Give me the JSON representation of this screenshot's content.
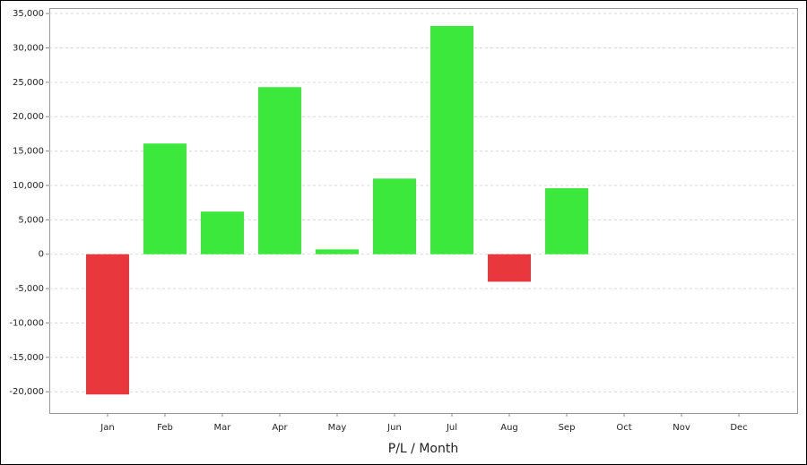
{
  "chart_data": {
    "type": "bar",
    "x_label": "P/L / Month",
    "categories": [
      "Jan",
      "Feb",
      "Mar",
      "Apr",
      "May",
      "Jun",
      "Jul",
      "Aug",
      "Sep",
      "Oct",
      "Nov",
      "Dec"
    ],
    "values": [
      -20400,
      16100,
      6200,
      24300,
      700,
      11000,
      33200,
      -4000,
      9600,
      null,
      null,
      null
    ],
    "positive_color": "#3de83d",
    "negative_color": "#e8383d",
    "ylim": [
      -23100,
      35800
    ],
    "yticks": [
      {
        "value": -20000,
        "label": "-20,000"
      },
      {
        "value": -15000,
        "label": "-15,000"
      },
      {
        "value": -10000,
        "label": "-10,000"
      },
      {
        "value": -5000,
        "label": "-5,000"
      },
      0,
      {
        "value": 5000,
        "label": "5,000"
      },
      {
        "value": 10000,
        "label": "10,000"
      },
      {
        "value": 15000,
        "label": "15,000"
      },
      {
        "value": 20000,
        "label": "20,000"
      },
      {
        "value": 25000,
        "label": "25,000"
      },
      {
        "value": 30000,
        "label": "30,000"
      },
      {
        "value": 35000,
        "label": "35,000"
      }
    ],
    "grid": true
  }
}
